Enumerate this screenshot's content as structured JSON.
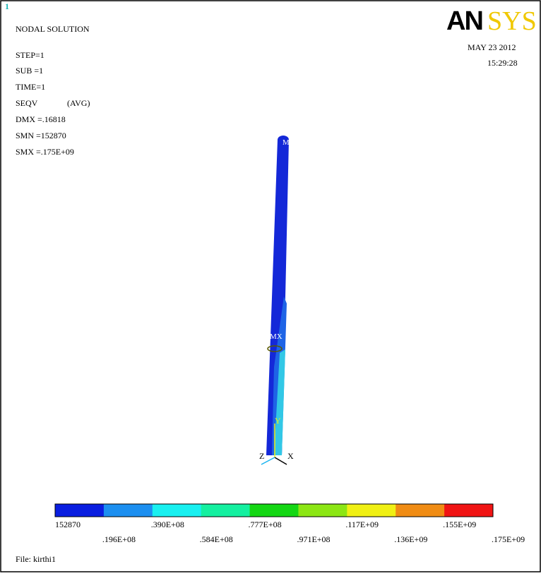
{
  "window_number": "1",
  "header": {
    "title": "NODAL SOLUTION",
    "step": "STEP=1",
    "sub": "SUB =1",
    "time": "TIME=1",
    "quantity": "SEQV",
    "avg": "(AVG)",
    "dmx": "DMX =.16818",
    "smn": "SMN =152870",
    "smx": "SMX =.175E+09"
  },
  "logo": {
    "an": "AN",
    "sys": "SYS"
  },
  "date": "MAY 23 2012",
  "clock": "15:29:28",
  "model": {
    "min_label": "MN",
    "max_label": "MX",
    "axis_y": "Y",
    "axis_z": "Z",
    "axis_x": "X"
  },
  "legend": {
    "colors": [
      "#0a1ee0",
      "#1c8ff0",
      "#19f0f0",
      "#14f0a0",
      "#14d714",
      "#8ce614",
      "#f0f014",
      "#f08c14",
      "#f01414"
    ],
    "labels": [
      "152870",
      ".196E+08",
      ".390E+08",
      ".584E+08",
      ".777E+08",
      ".971E+08",
      ".117E+09",
      ".136E+09",
      ".155E+09",
      ".175E+09"
    ]
  },
  "file": "File: kirthi1"
}
